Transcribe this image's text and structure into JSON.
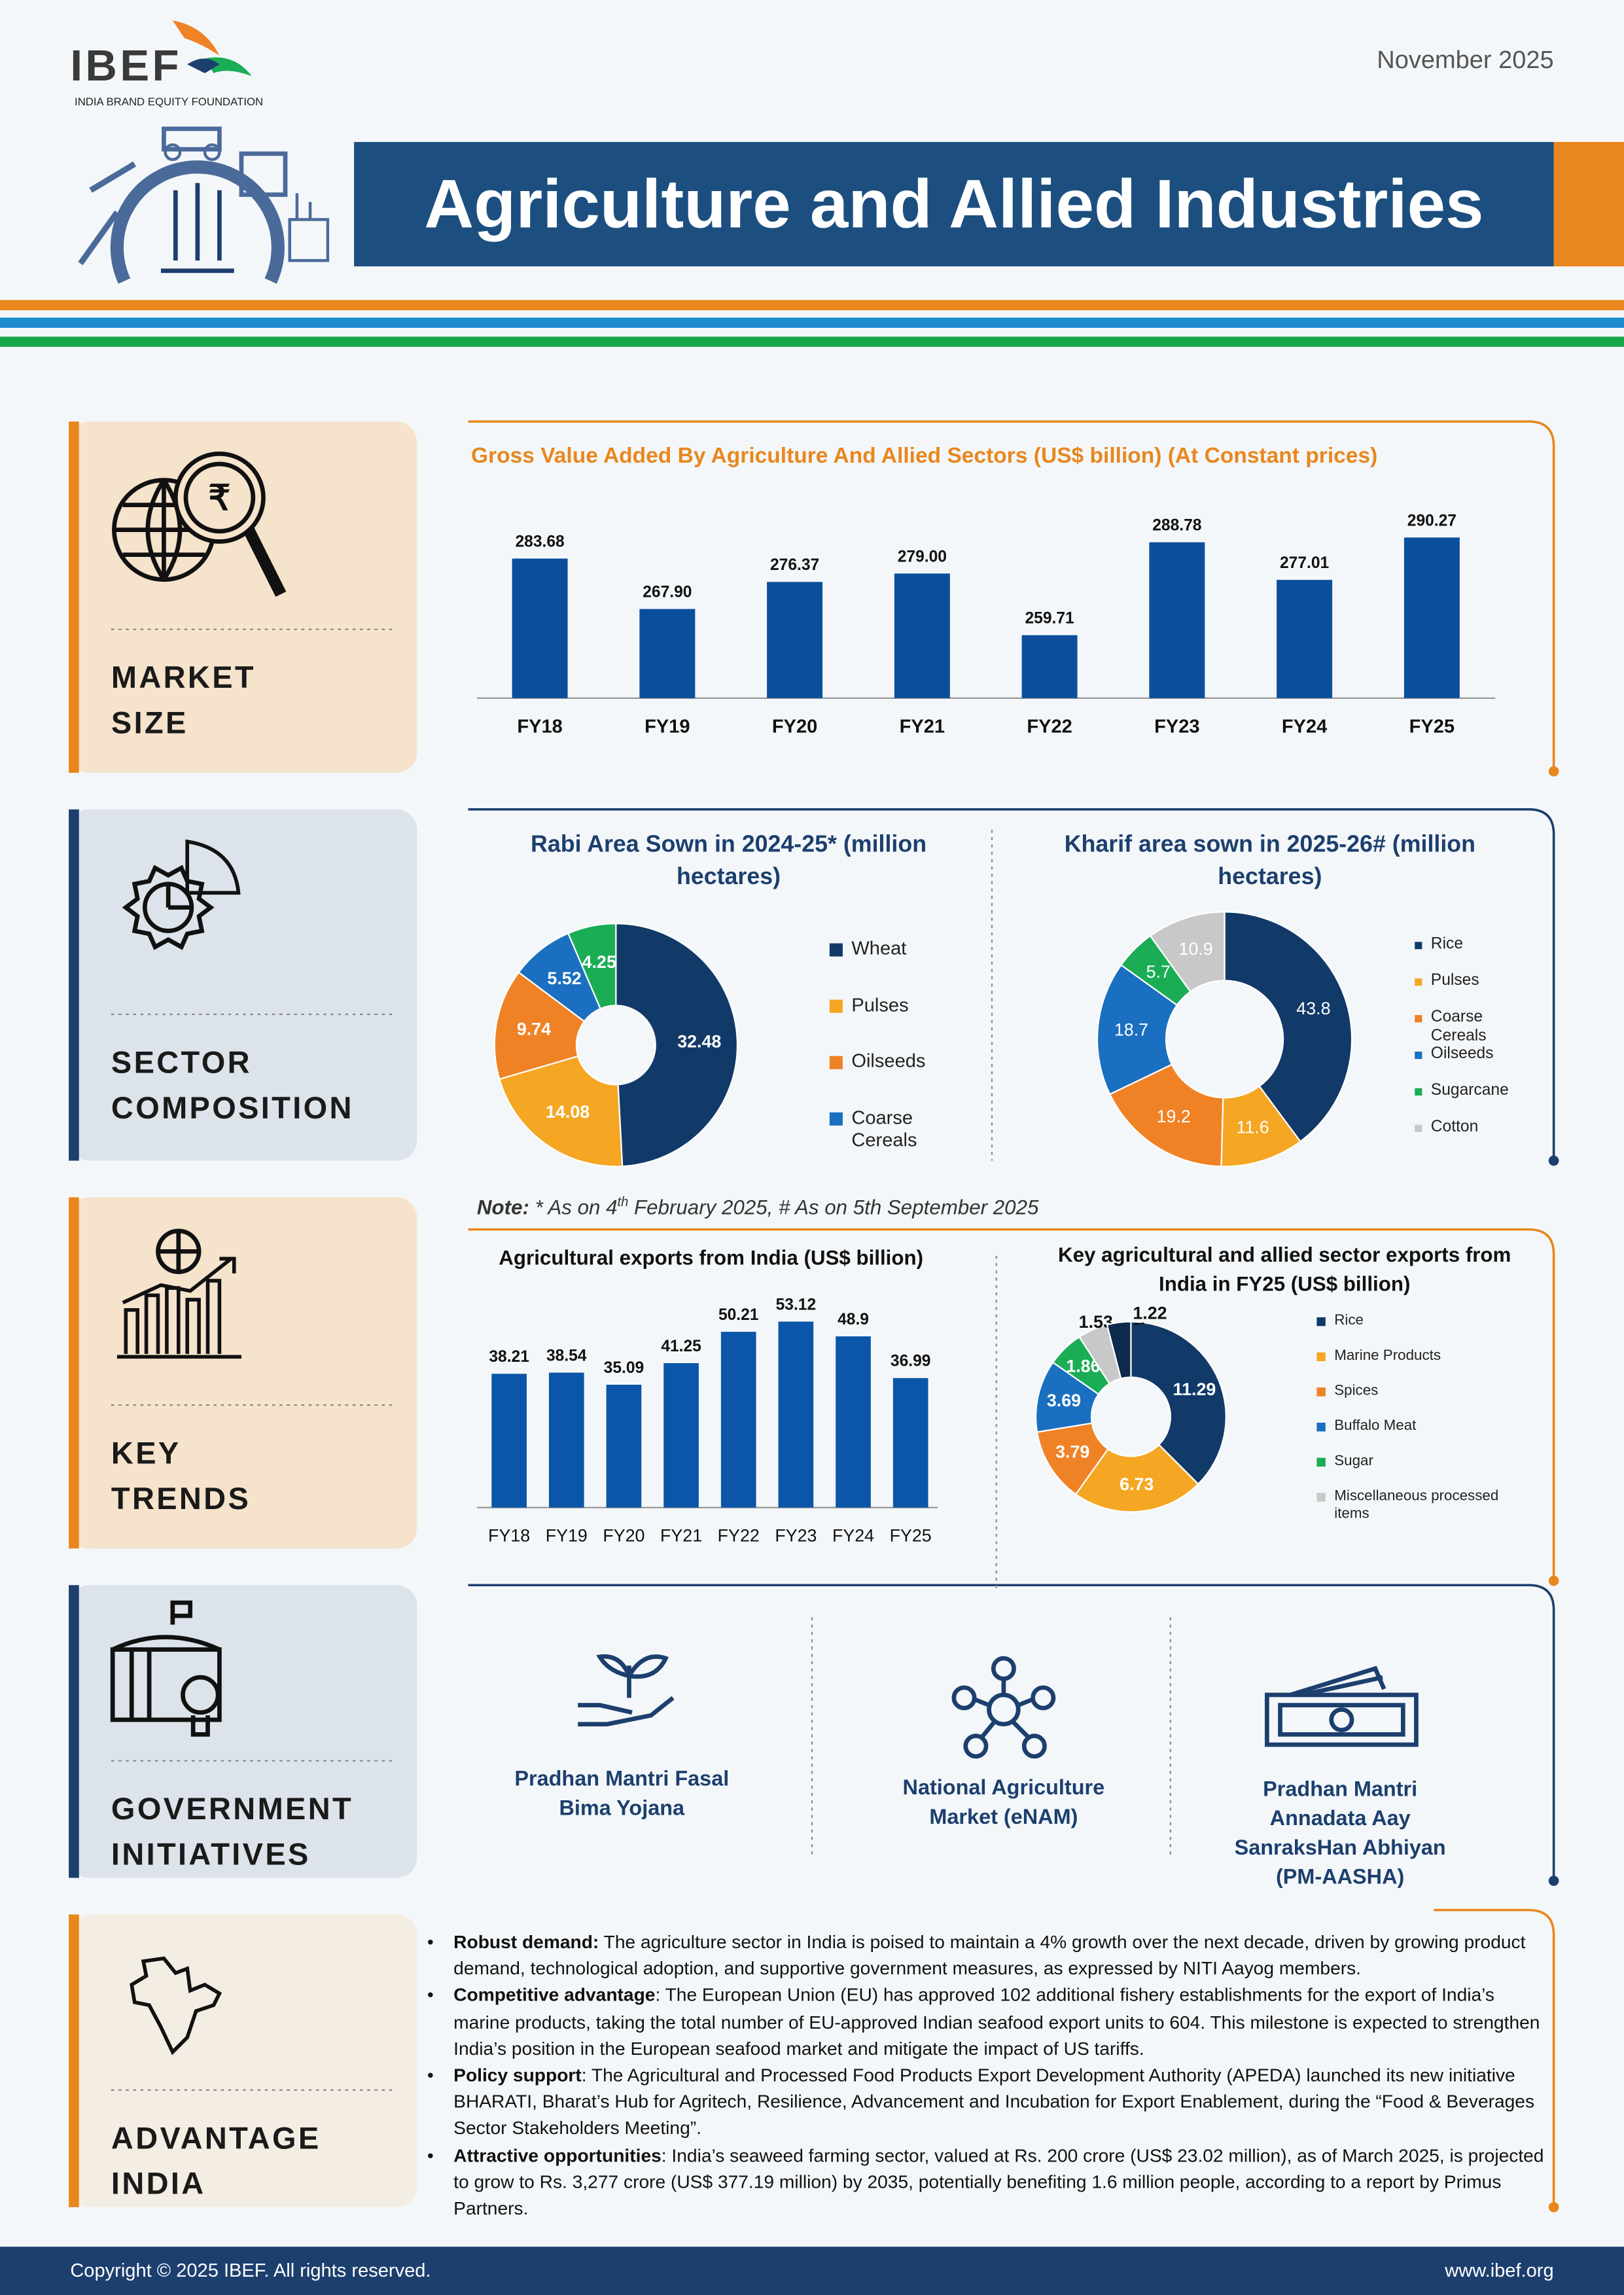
{
  "header": {
    "logo": "IBEF",
    "logo_tagline": "INDIA BRAND EQUITY FOUNDATION",
    "date": "November 2025",
    "title": "Agriculture and Allied Industries"
  },
  "sections": [
    {
      "label": "MARKET SIZE"
    },
    {
      "label": "SECTOR COMPOSITION"
    },
    {
      "label": "KEY TRENDS"
    },
    {
      "label": "GOVERNMENT INITIATIVES"
    },
    {
      "label": "ADVANTAGE INDIA"
    }
  ],
  "chart_data": [
    {
      "type": "bar",
      "title": "Gross Value Added By Agriculture And Allied Sectors (US$ billion) (At Constant prices)",
      "categories": [
        "FY18",
        "FY19",
        "FY20",
        "FY21",
        "FY22",
        "FY23",
        "FY24",
        "FY25"
      ],
      "values": [
        283.68,
        267.9,
        276.37,
        279,
        259.71,
        288.78,
        277.01,
        290.27
      ],
      "value_labels": [
        "283.68",
        "267.90",
        "276.37",
        "279.00",
        "259.71",
        "288.78",
        "277.01",
        "290.27"
      ],
      "color": "#0b4f9c",
      "ylim": [
        240,
        300
      ]
    },
    {
      "type": "pie",
      "title": "Rabi Area Sown in 2024-25* (million hectares)",
      "categories": [
        "Wheat",
        "Pulses",
        "Oilseeds",
        "Coarse Cereals",
        null
      ],
      "values": [
        32.48,
        14.08,
        9.74,
        5.52,
        4.25
      ],
      "colors": [
        "#123a69",
        "#f5a623",
        "#f08226",
        "#1a6fc0",
        "#1aad55"
      ]
    },
    {
      "type": "pie",
      "title": "Kharif area sown in 2025-26# (million hectares)",
      "categories": [
        "Rice",
        "Pulses",
        "Coarse Cereals",
        "Oilseeds",
        "Sugarcane",
        "Cotton"
      ],
      "values": [
        43.8,
        11.6,
        19.2,
        18.7,
        5.7,
        10.9
      ],
      "colors": [
        "#123a69",
        "#f5a623",
        "#f08226",
        "#1a6fc0",
        "#1aad55",
        "#c8c8c8"
      ]
    },
    {
      "type": "bar",
      "title": "Agricultural exports from India (US$ billion)",
      "categories": [
        "FY18",
        "FY19",
        "FY20",
        "FY21",
        "FY22",
        "FY23",
        "FY24",
        "FY25"
      ],
      "values": [
        38.21,
        38.54,
        35.09,
        41.25,
        50.21,
        53.12,
        48.9,
        36.99
      ],
      "color": "#0b56a8",
      "ylim": [
        0,
        60
      ]
    },
    {
      "type": "pie",
      "title": "Key agricultural and allied sector exports from India in FY25 (US$ billion)",
      "categories": [
        "Rice",
        "Marine Products",
        "Spices",
        "Buffalo Meat",
        "Sugar",
        "Miscellaneous processed items",
        null
      ],
      "values": [
        11.29,
        6.73,
        3.79,
        3.69,
        1.86,
        1.53,
        1.22
      ],
      "colors": [
        "#123a69",
        "#f5a623",
        "#f08226",
        "#1a6fc0",
        "#1aad55",
        "#c8c8c8",
        "#0e2a4d"
      ]
    }
  ],
  "note": {
    "label": "Note:",
    "text": "* As on 4",
    "sup": "th",
    "text_end": "February 2025, # As on 5th September 2025"
  },
  "initiatives": [
    "Pradhan Mantri Fasal Bima Yojana",
    "National Agriculture Market (eNAM)",
    "Pradhan Mantri Annadata Aay SanraksHan Abhiyan (PM-AASHA)"
  ],
  "advantage": [
    {
      "lead": "Robust demand:",
      "text": "The agriculture sector in India is poised to maintain a 4% growth over the next decade, driven by growing product demand, technological adoption, and supportive government measures, as expressed by NITI Aayog members."
    },
    {
      "lead": "Competitive advantage",
      "text": ": The European Union (EU) has approved 102 additional fishery establishments for the export of India’s marine products, taking the total number of EU-approved Indian seafood export units to 604. This milestone is expected to strengthen India’s position in the European seafood market and mitigate the impact of US tariffs."
    },
    {
      "lead": "Policy support",
      "text": ": The Agricultural and Processed Food Products Export Development Authority (APEDA) launched its new initiative BHARATI, Bharat’s Hub for Agritech, Resilience, Advancement and Incubation for Export Enablement, during the “Food & Beverages Sector Stakeholders Meeting”."
    },
    {
      "lead": "Attractive opportunities",
      "text": ": India’s seaweed farming sector, valued at Rs. 200 crore (US$ 23.02 million), as of March 2025, is projected to grow to Rs. 3,277 crore (US$ 377.19 million) by 2035, potentially benefiting 1.6 million people, according to a report by Primus Partners."
    }
  ],
  "footer": {
    "copyright": "Copyright © 2025 IBEF. All rights reserved.",
    "url": "www.ibef.org"
  }
}
